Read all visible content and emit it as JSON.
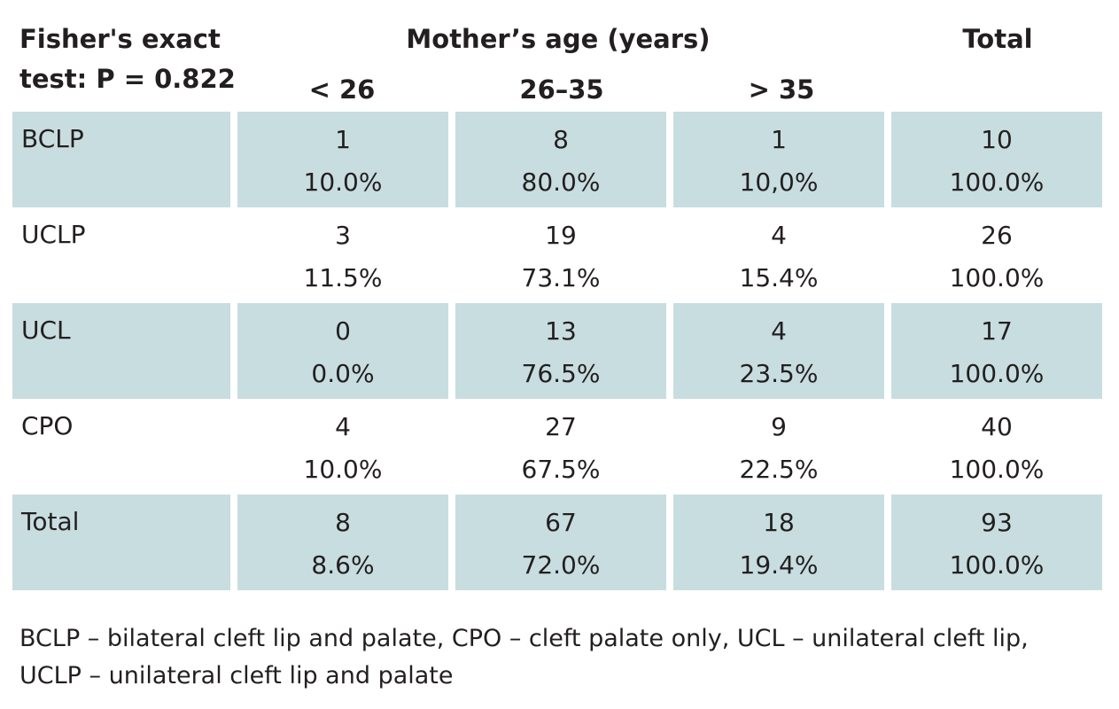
{
  "header": {
    "stat_line1": "Fisher's exact",
    "stat_line2": "test: P = 0.822",
    "group_title": "Mother’s age (years)",
    "subgroups": [
      "< 26",
      "26–35",
      "> 35"
    ],
    "total_title": "Total"
  },
  "rows": [
    {
      "label": "BCLP",
      "cells": [
        [
          "1",
          "10.0%"
        ],
        [
          "8",
          "80.0%"
        ],
        [
          "1",
          "10,0%"
        ],
        [
          "10",
          "100.0%"
        ]
      ]
    },
    {
      "label": "UCLP",
      "cells": [
        [
          "3",
          "11.5%"
        ],
        [
          "19",
          "73.1%"
        ],
        [
          "4",
          "15.4%"
        ],
        [
          "26",
          "100.0%"
        ]
      ]
    },
    {
      "label": "UCL",
      "cells": [
        [
          "0",
          "0.0%"
        ],
        [
          "13",
          "76.5%"
        ],
        [
          "4",
          "23.5%"
        ],
        [
          "17",
          "100.0%"
        ]
      ]
    },
    {
      "label": "CPO",
      "cells": [
        [
          "4",
          "10.0%"
        ],
        [
          "27",
          "67.5%"
        ],
        [
          "9",
          "22.5%"
        ],
        [
          "40",
          "100.0%"
        ]
      ]
    },
    {
      "label": "Total",
      "cells": [
        [
          "8",
          "8.6%"
        ],
        [
          "67",
          "72.0%"
        ],
        [
          "18",
          "19.4%"
        ],
        [
          "93",
          "100.0%"
        ]
      ]
    }
  ],
  "footnote": {
    "line1": "BCLP – bilateral cleft lip and palate, CPO – cleft palate only, UCL – unilateral cleft lip,",
    "line2": "UCLP – unilateral cleft lip and palate"
  },
  "colors": {
    "shaded_row": "#c8dde0",
    "text": "#231f20"
  }
}
